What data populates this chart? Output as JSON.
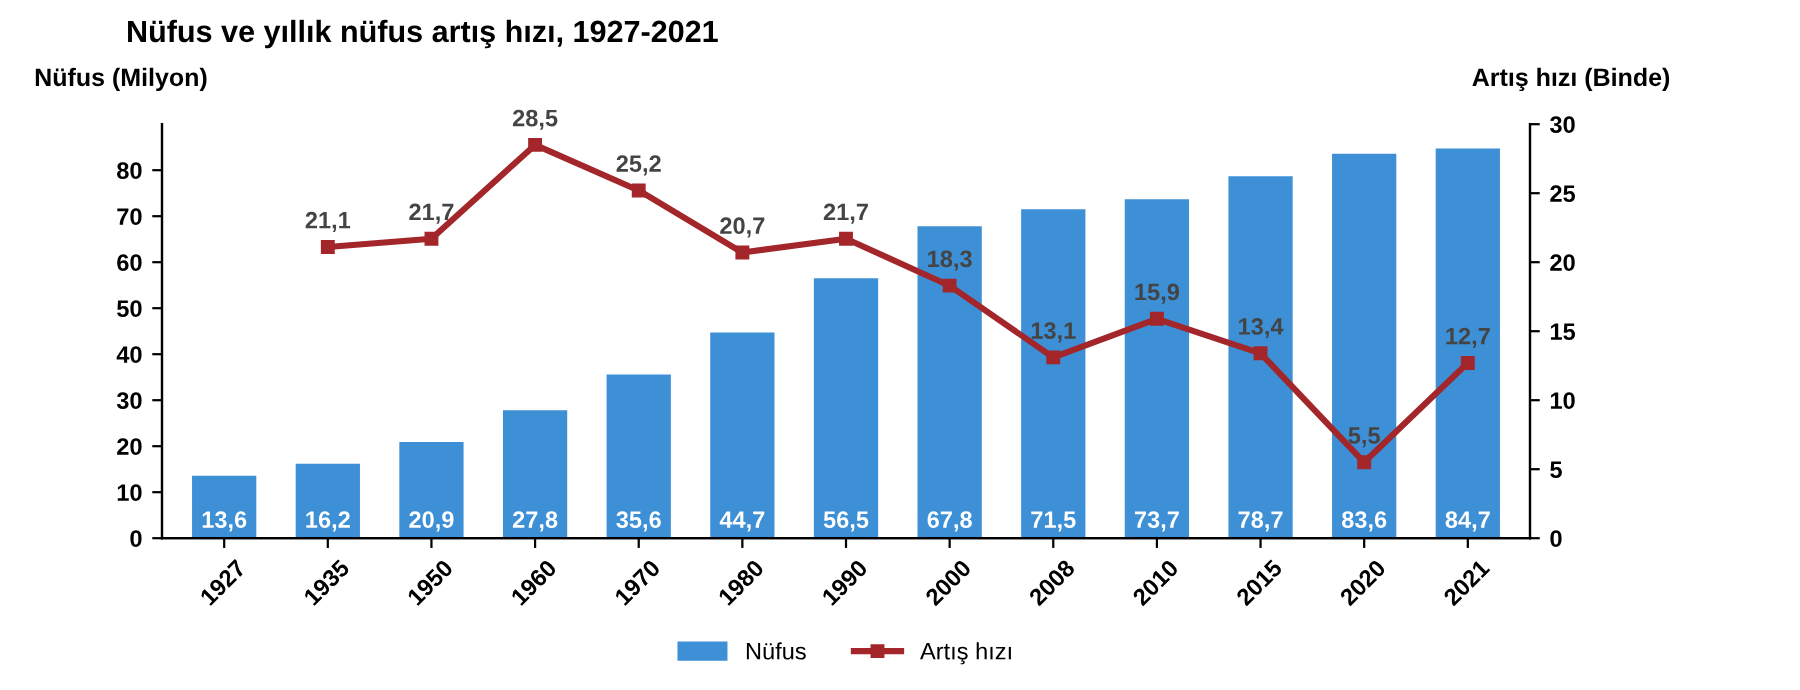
{
  "chart_data": {
    "type": "bar",
    "title": "Nüfus ve yıllık nüfus artış hızı, 1927-2021",
    "ylabel": "Nüfus (Milyon)",
    "y2label": "Artış hızı (Binde)",
    "categories": [
      "1927",
      "1935",
      "1950",
      "1960",
      "1970",
      "1980",
      "1990",
      "2000",
      "2008",
      "2010",
      "2015",
      "2020",
      "2021"
    ],
    "series": [
      {
        "name": "Nüfus",
        "color": "#3d8fd6",
        "values": [
          13.6,
          16.2,
          20.9,
          27.8,
          35.6,
          44.7,
          56.5,
          67.8,
          71.5,
          73.7,
          78.7,
          83.6,
          84.7
        ],
        "value_labels": [
          "13,6",
          "16,2",
          "20,9",
          "27,8",
          "35,6",
          "44,7",
          "56,5",
          "67,8",
          "71,5",
          "73,7",
          "78,7",
          "83,6",
          "84,7"
        ]
      },
      {
        "name": "Artış hızı",
        "type": "line",
        "axis": "y2",
        "color": "#a3262a",
        "marker": "square",
        "values": [
          null,
          21.1,
          21.7,
          28.5,
          25.2,
          20.7,
          21.7,
          18.3,
          13.1,
          15.9,
          13.4,
          5.5,
          12.7
        ],
        "value_labels": [
          null,
          "21,1",
          "21,7",
          "28,5",
          "25,2",
          "20,7",
          "21,7",
          "18,3",
          "13,1",
          "15,9",
          "13,4",
          "5,5",
          "12,7"
        ]
      }
    ],
    "ylim": [
      0,
      90
    ],
    "yticks": [
      0,
      10,
      20,
      30,
      40,
      50,
      60,
      70,
      80
    ],
    "y2lim": [
      0,
      30
    ],
    "y2ticks": [
      0,
      5,
      10,
      15,
      20,
      25,
      30
    ],
    "legend": "bottom",
    "grid": false
  }
}
